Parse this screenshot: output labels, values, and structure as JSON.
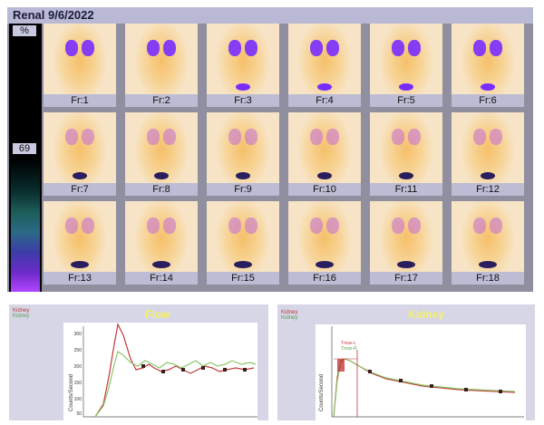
{
  "window": {
    "title": "Renal 9/6/2022"
  },
  "colorbar": {
    "top_label": "%",
    "mid_value": "69"
  },
  "frames": [
    {
      "label": "Fr:1"
    },
    {
      "label": "Fr:2"
    },
    {
      "label": "Fr:3"
    },
    {
      "label": "Fr:4"
    },
    {
      "label": "Fr:5"
    },
    {
      "label": "Fr:6"
    },
    {
      "label": "Fr:7"
    },
    {
      "label": "Fr:8"
    },
    {
      "label": "Fr:9"
    },
    {
      "label": "Fr:10"
    },
    {
      "label": "Fr:11"
    },
    {
      "label": "Fr:12"
    },
    {
      "label": "Fr:13"
    },
    {
      "label": "Fr:14"
    },
    {
      "label": "Fr:15"
    },
    {
      "label": "Fr:16"
    },
    {
      "label": "Fr:17"
    },
    {
      "label": "Fr:18"
    }
  ],
  "flow_panel": {
    "title": "Flow",
    "legend": [
      "Kidney",
      "Kidney"
    ],
    "ylabel": "Counts/Second",
    "yticks": [
      "300",
      "250",
      "200",
      "150",
      "100",
      "50"
    ]
  },
  "kidney_panel": {
    "title": "Kidney",
    "legend": [
      "Kidney",
      "Kidney"
    ],
    "ylabel": "Counts/Second",
    "series_labels": [
      "Tmax-L",
      "Tmax-R"
    ]
  },
  "colors": {
    "uptake_high": "#7a2cff",
    "uptake_mid": "#c26bd8",
    "background_tissue": "#f5c06a",
    "flow_line_red": "#c23a3a",
    "flow_line_green": "#8cc66b"
  }
}
